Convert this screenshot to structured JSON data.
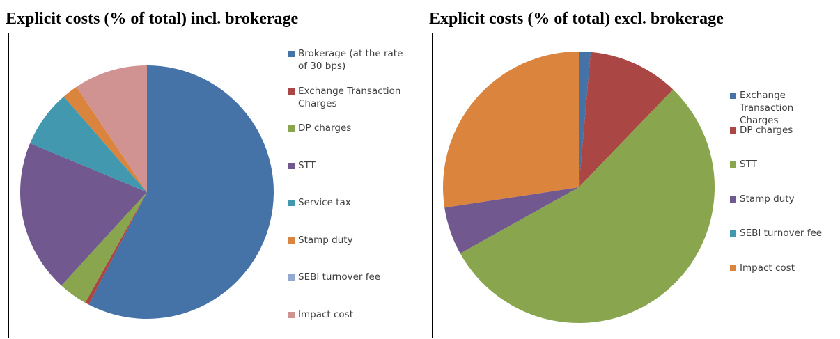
{
  "chart_data": [
    {
      "type": "pie",
      "title": "Explicit costs (% of total) incl. brokerage",
      "categories": [
        "Brokerage (at the rate of 30 bps)",
        "Exchange Transaction Charges",
        "DP charges",
        "STT",
        "Service tax",
        "Stamp duty",
        "SEBI turnover fee",
        "Impact cost"
      ],
      "values": [
        57.6,
        0.5,
        3.7,
        19.5,
        7.3,
        2.0,
        0,
        9.4
      ],
      "colors": [
        "#4572A7",
        "#AA4643",
        "#89A54E",
        "#71588F",
        "#4198AF",
        "#DB843D",
        "#93A9CF",
        "#D19392"
      ],
      "legend": "right"
    },
    {
      "type": "pie",
      "title": "Explicit costs (% of total) excl. brokerage",
      "categories": [
        "Exchange Transaction Charges",
        "DP charges",
        "STT",
        "Stamp duty",
        "SEBI turnover fee",
        "Impact cost"
      ],
      "values": [
        1.4,
        10.8,
        54.7,
        5.7,
        0,
        27.4
      ],
      "colors": [
        "#4572A7",
        "#AA4643",
        "#89A54E",
        "#71588F",
        "#4198AF",
        "#DB843D"
      ],
      "legend": "right"
    }
  ]
}
